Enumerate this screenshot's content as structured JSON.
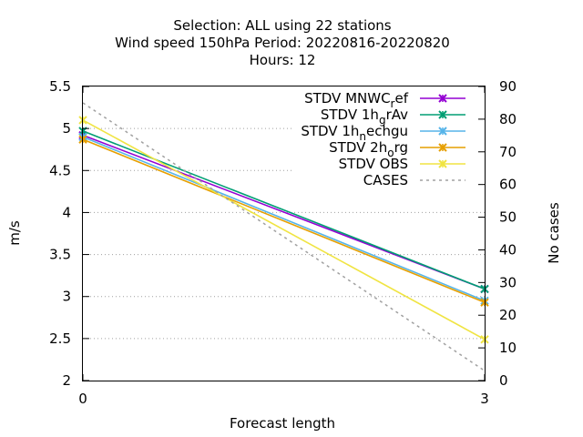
{
  "chart_data": {
    "type": "line",
    "title_lines": [
      "Selection: ALL using    22 stations",
      "Wind speed 150hPa   Period: 20220816-20220820",
      "Hours:  12"
    ],
    "xlabel": "Forecast length",
    "ylabel": "m/s",
    "y2label": "No cases",
    "x": [
      0,
      3
    ],
    "x_ticks": [
      "0",
      "3"
    ],
    "xlim": [
      0,
      3
    ],
    "ylim": [
      2,
      5.5
    ],
    "y_ticks": [
      "2",
      "2.5",
      "3",
      "3.5",
      "4",
      "4.5",
      "5",
      "5.5"
    ],
    "y2lim": [
      0,
      90
    ],
    "y2_ticks": [
      "0",
      "10",
      "20",
      "30",
      "40",
      "50",
      "60",
      "70",
      "80",
      "90"
    ],
    "grid": "horizontal dotted",
    "legend_position": "top-right",
    "series": [
      {
        "name": "STDV MNWC_ref",
        "legend_text": "STDV MNWC",
        "legend_sub": "r",
        "legend_rest": "ef",
        "values": [
          4.92,
          3.09
        ],
        "color": "#9400d3",
        "axis": "y1",
        "marker": "x"
      },
      {
        "name": "STDV 1h_grAv",
        "legend_text": "STDV 1h",
        "legend_sub": "g",
        "legend_rest": "rAv",
        "values": [
          4.97,
          3.09
        ],
        "color": "#009e73",
        "axis": "y1",
        "marker": "x"
      },
      {
        "name": "STDV 1h_nechgu",
        "legend_text": "STDV 1h",
        "legend_sub": "n",
        "legend_rest": "echgu",
        "values": [
          4.9,
          2.95
        ],
        "color": "#56b4e9",
        "axis": "y1",
        "marker": "x"
      },
      {
        "name": "STDV 2h_org",
        "legend_text": "STDV 2h",
        "legend_sub": "o",
        "legend_rest": "rg",
        "values": [
          4.87,
          2.93
        ],
        "color": "#e69f00",
        "axis": "y1",
        "marker": "x"
      },
      {
        "name": "STDV OBS",
        "legend_text": "STDV OBS",
        "legend_sub": "",
        "legend_rest": "",
        "values": [
          5.1,
          2.49
        ],
        "color": "#f0e442",
        "axis": "y1",
        "marker": "x"
      },
      {
        "name": "CASES",
        "legend_text": "CASES",
        "legend_sub": "",
        "legend_rest": "",
        "values": [
          85,
          3
        ],
        "color": "#a0a0a0",
        "axis": "y2",
        "dashed": true
      }
    ]
  }
}
